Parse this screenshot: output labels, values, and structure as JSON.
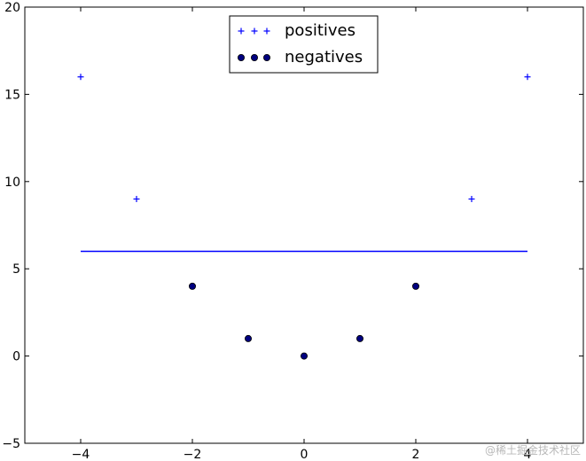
{
  "chart_data": {
    "type": "scatter",
    "title": "",
    "xlabel": "",
    "ylabel": "",
    "xlim": [
      -5,
      5
    ],
    "ylim": [
      -5,
      20
    ],
    "xticks": [
      -4,
      -2,
      0,
      2,
      4
    ],
    "yticks": [
      -5,
      0,
      5,
      10,
      15,
      20
    ],
    "xtick_labels": [
      "−4",
      "−2",
      "0",
      "2",
      "4"
    ],
    "ytick_labels": [
      "−5",
      "0",
      "5",
      "10",
      "15",
      "20"
    ],
    "grid": false,
    "legend_position": "top-center",
    "series": [
      {
        "name": "positives",
        "marker": "plus",
        "color": "#0000ff",
        "x": [
          -4,
          -3,
          3,
          4
        ],
        "y": [
          16,
          9,
          9,
          16
        ]
      },
      {
        "name": "negatives",
        "marker": "circle",
        "color": "#00007f",
        "x": [
          -2,
          -1,
          0,
          1,
          2
        ],
        "y": [
          4,
          1,
          0,
          1,
          4
        ]
      }
    ],
    "lines": [
      {
        "x": [
          -4,
          4
        ],
        "y": [
          6,
          6
        ],
        "color": "#0000ff"
      }
    ]
  },
  "watermark": "@稀土掘金技术社区"
}
